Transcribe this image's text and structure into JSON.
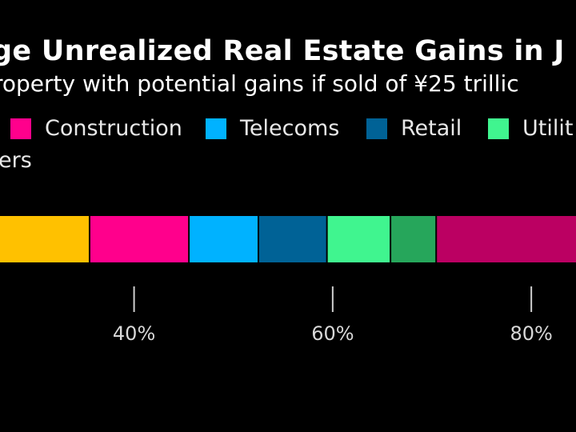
{
  "chart_data": {
    "type": "bar",
    "orientation": "horizontal",
    "stacked": true,
    "title": "ge Unrealized Real Estate Gains in J",
    "subtitle": "roperty with potential gains if sold of ¥25 trillic",
    "series": [
      {
        "name": "",
        "value": 35.6,
        "color": "#FFC100"
      },
      {
        "name": "Construction",
        "value": 10.0,
        "color": "#FF008C"
      },
      {
        "name": "Telecoms",
        "value": 7.0,
        "color": "#00B2FF"
      },
      {
        "name": "Retail",
        "value": 6.9,
        "color": "#006296"
      },
      {
        "name": "Utilit",
        "value": 6.4,
        "color": "#40F58F"
      },
      {
        "name": "",
        "value": 4.6,
        "color": "#26A65B"
      },
      {
        "name": "ers",
        "value": 29.5,
        "color": "#BB0062"
      }
    ],
    "legend": [
      {
        "label": "Construction",
        "color": "#FF008C"
      },
      {
        "label": "Telecoms",
        "color": "#00B2FF"
      },
      {
        "label": "Retail",
        "color": "#006296"
      },
      {
        "label": "Utilit",
        "color": "#40F58F"
      },
      {
        "label": "ers",
        "color": null
      }
    ],
    "x_ticks": [
      "40%",
      "60%",
      "80%"
    ],
    "x_tick_values": [
      40,
      60,
      80
    ],
    "xlim": [
      26.5,
      84.5
    ],
    "grid": false,
    "legend_placement": "top"
  }
}
